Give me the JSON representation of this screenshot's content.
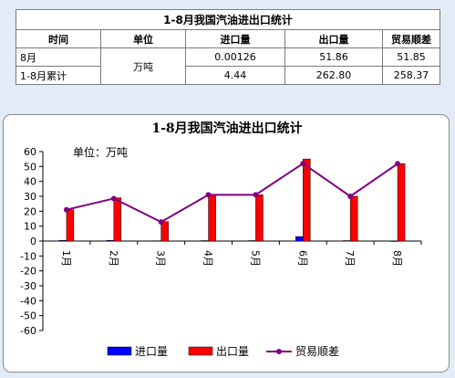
{
  "table": {
    "title": "1-8月我国汽油进出口统计",
    "headers": [
      "时间",
      "单位",
      "进口量",
      "出口量",
      "贸易顺差"
    ],
    "unit": "万吨",
    "rows": [
      {
        "period": "8月",
        "import": "0.00126",
        "export": "51.86",
        "surplus": "51.85"
      },
      {
        "period": "1-8月累计",
        "import": "4.44",
        "export": "262.80",
        "surplus": "258.37"
      }
    ]
  },
  "chart_data": {
    "type": "bar",
    "title": "1-8月我国汽油进出口统计",
    "unit_label": "单位：万吨",
    "categories": [
      "1月",
      "2月",
      "3月",
      "4月",
      "5月",
      "6月",
      "7月",
      "8月"
    ],
    "series": [
      {
        "name": "进口量",
        "type": "bar",
        "color": "#0000ff",
        "values": [
          0.5,
          0.5,
          0.2,
          0.3,
          0.3,
          3,
          0.3,
          0.00126
        ]
      },
      {
        "name": "出口量",
        "type": "bar",
        "color": "#ff0000",
        "values": [
          21,
          29,
          13,
          31,
          31,
          55,
          30,
          51.86
        ]
      },
      {
        "name": "贸易顺差",
        "type": "line",
        "color": "#800080",
        "values": [
          21,
          28.5,
          12.8,
          31,
          31,
          52,
          30,
          51.85
        ]
      }
    ],
    "ylim": [
      -60,
      60
    ],
    "yticks": [
      60,
      50,
      40,
      30,
      20,
      10,
      0,
      -10,
      -20,
      -30,
      -40,
      -50,
      -60
    ],
    "grid": false,
    "legend": "bottom"
  }
}
